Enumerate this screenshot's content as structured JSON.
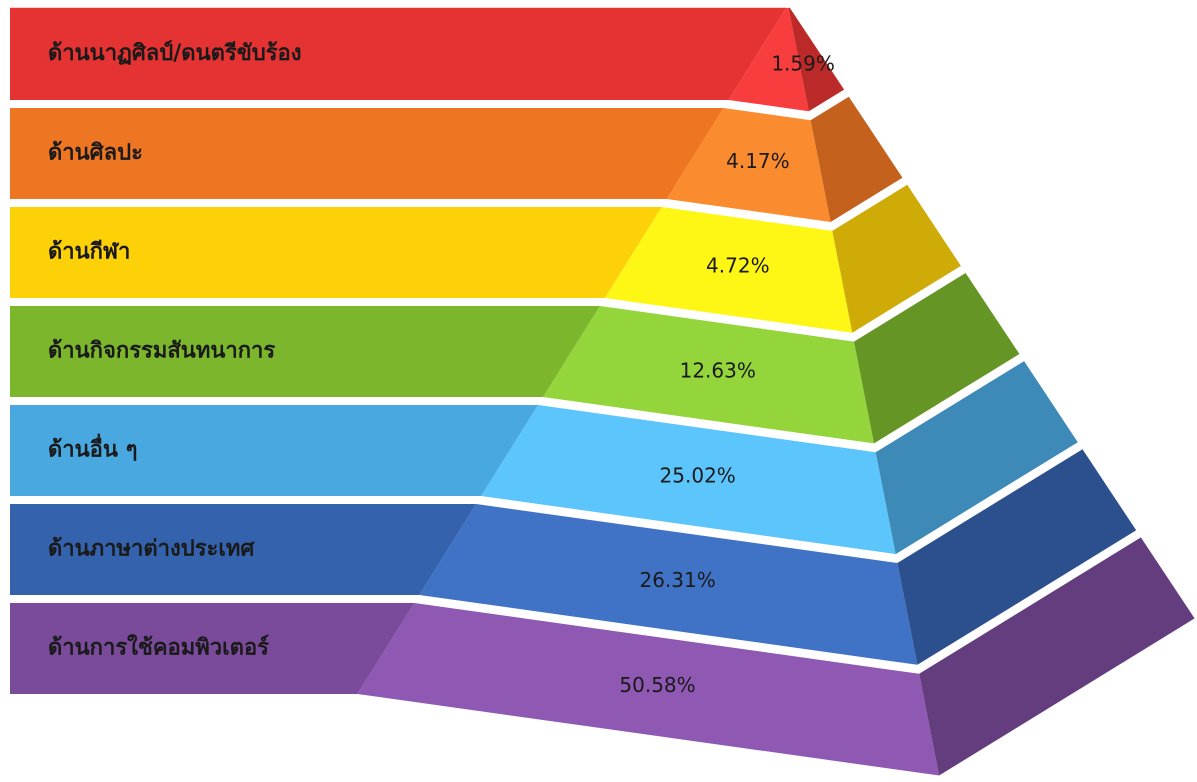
{
  "chart_data": {
    "type": "pyramid",
    "categories": [
      "ด้านนาฏศิลป์/ดนตรีขับร้อง",
      "ด้านศิลปะ",
      "ด้านกีฬา",
      "ด้านกิจกรรมสันทนาการ",
      "ด้านอื่น ๆ",
      "ด้านภาษาต่างประเทศ",
      "ด้านการใช้คอมพิวเตอร์"
    ],
    "values": [
      1.59,
      4.17,
      4.72,
      12.63,
      25.02,
      26.31,
      50.58
    ],
    "value_labels": [
      "1.59%",
      "4.17%",
      "4.72%",
      "12.63%",
      "25.02%",
      "26.31%",
      "50.58%"
    ],
    "colors": [
      "#e53232",
      "#ee7623",
      "#fdd108",
      "#7bb62c",
      "#4aa8e0",
      "#3462ac",
      "#7a4a9b"
    ]
  }
}
